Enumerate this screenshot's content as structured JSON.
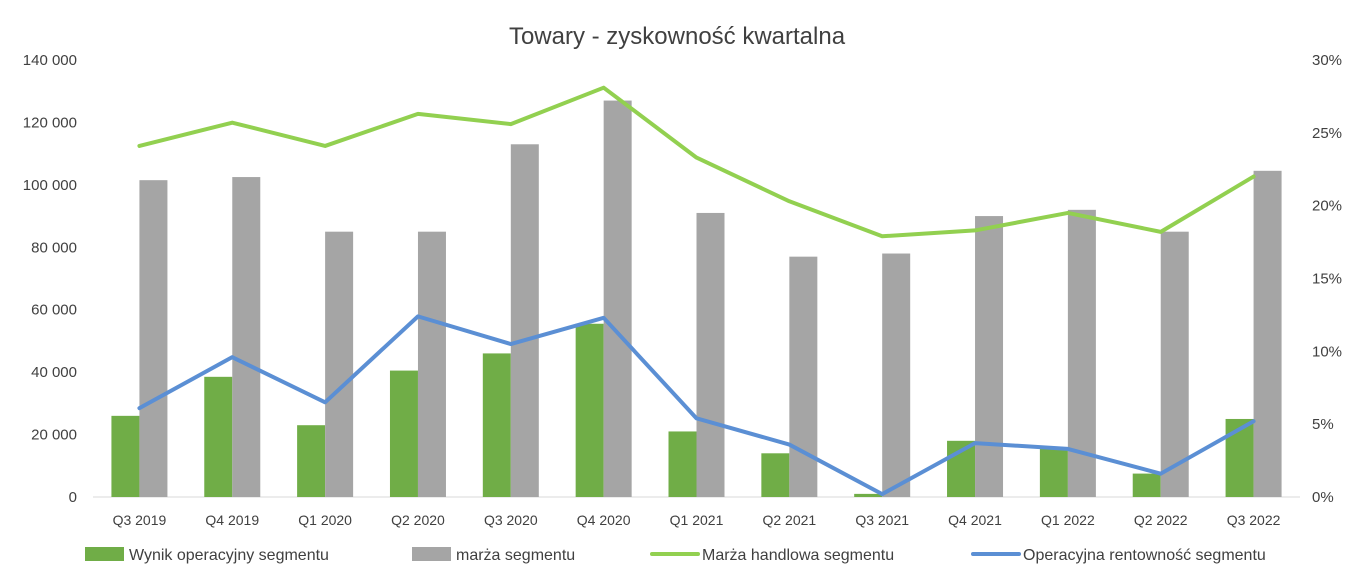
{
  "chart_data": {
    "type": "bar",
    "title": "Towary - zyskowność kwartalna",
    "categories": [
      "Q3 2019",
      "Q4 2019",
      "Q1 2020",
      "Q2 2020",
      "Q3 2020",
      "Q4 2020",
      "Q1 2021",
      "Q2 2021",
      "Q3 2021",
      "Q4 2021",
      "Q1 2022",
      "Q2 2022",
      "Q3 2022"
    ],
    "left_axis": {
      "min": 0,
      "max": 140000,
      "ticks": [
        0,
        20000,
        40000,
        60000,
        80000,
        100000,
        120000,
        140000
      ],
      "tick_labels": [
        "0",
        "20 000",
        "40 000",
        "60 000",
        "80 000",
        "100 000",
        "120 000",
        "140 000"
      ]
    },
    "right_axis": {
      "min": 0,
      "max": 30,
      "ticks": [
        0,
        5,
        10,
        15,
        20,
        25,
        30
      ],
      "tick_labels": [
        "0%",
        "5%",
        "10%",
        "15%",
        "20%",
        "25%",
        "30%"
      ]
    },
    "series": [
      {
        "name": "Wynik operacyjny segmentu",
        "type": "bar",
        "axis": "left",
        "color": "#70ad47",
        "values": [
          26000,
          38500,
          23000,
          40500,
          46000,
          55500,
          21000,
          14000,
          1000,
          18000,
          15500,
          7500,
          25000
        ]
      },
      {
        "name": "marża segmentu",
        "type": "bar",
        "axis": "left",
        "color": "#a5a5a5",
        "values": [
          101500,
          102500,
          85000,
          85000,
          113000,
          127000,
          91000,
          77000,
          78000,
          90000,
          92000,
          85000,
          104500
        ]
      },
      {
        "name": "Marża handlowa segmentu",
        "type": "line",
        "axis": "right",
        "color": "#92d050",
        "values": [
          24.1,
          25.7,
          24.1,
          26.3,
          25.6,
          28.1,
          23.3,
          20.3,
          17.9,
          18.3,
          19.5,
          18.2,
          22.0
        ]
      },
      {
        "name": "Operacyjna rentowność segmentu",
        "type": "line",
        "axis": "right",
        "color": "#5b8fd4",
        "values": [
          6.1,
          9.6,
          6.5,
          12.4,
          10.5,
          12.3,
          5.4,
          3.6,
          0.2,
          3.7,
          3.3,
          1.6,
          5.2
        ]
      }
    ],
    "grid": false,
    "legend_position": "bottom"
  }
}
